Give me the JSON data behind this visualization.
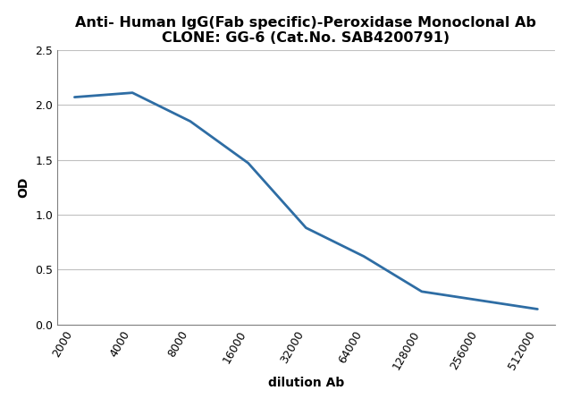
{
  "title_line1": "Anti- Human IgG(Fab specific)-Peroxidase Monoclonal Ab",
  "title_line2": "CLONE: GG-6 (Cat.No. SAB4200791)",
  "xlabel": "dilution Ab",
  "ylabel": "OD",
  "x_values": [
    2000,
    4000,
    8000,
    16000,
    32000,
    64000,
    128000,
    256000,
    512000
  ],
  "y_values": [
    2.07,
    2.11,
    1.85,
    1.47,
    0.88,
    0.62,
    0.3,
    0.22,
    0.14
  ],
  "x_tick_labels": [
    "2000",
    "4000",
    "8000",
    "16000",
    "32000",
    "64000",
    "128000",
    "256000",
    "512000"
  ],
  "ylim": [
    0.0,
    2.5
  ],
  "yticks": [
    0.0,
    0.5,
    1.0,
    1.5,
    2.0,
    2.5
  ],
  "line_color": "#2E6DA4",
  "line_width": 2.0,
  "background_color": "#ffffff",
  "grid_color": "#c0c0c0",
  "title_fontsize": 11.5,
  "label_fontsize": 10,
  "tick_fontsize": 9,
  "spine_color": "#808080"
}
